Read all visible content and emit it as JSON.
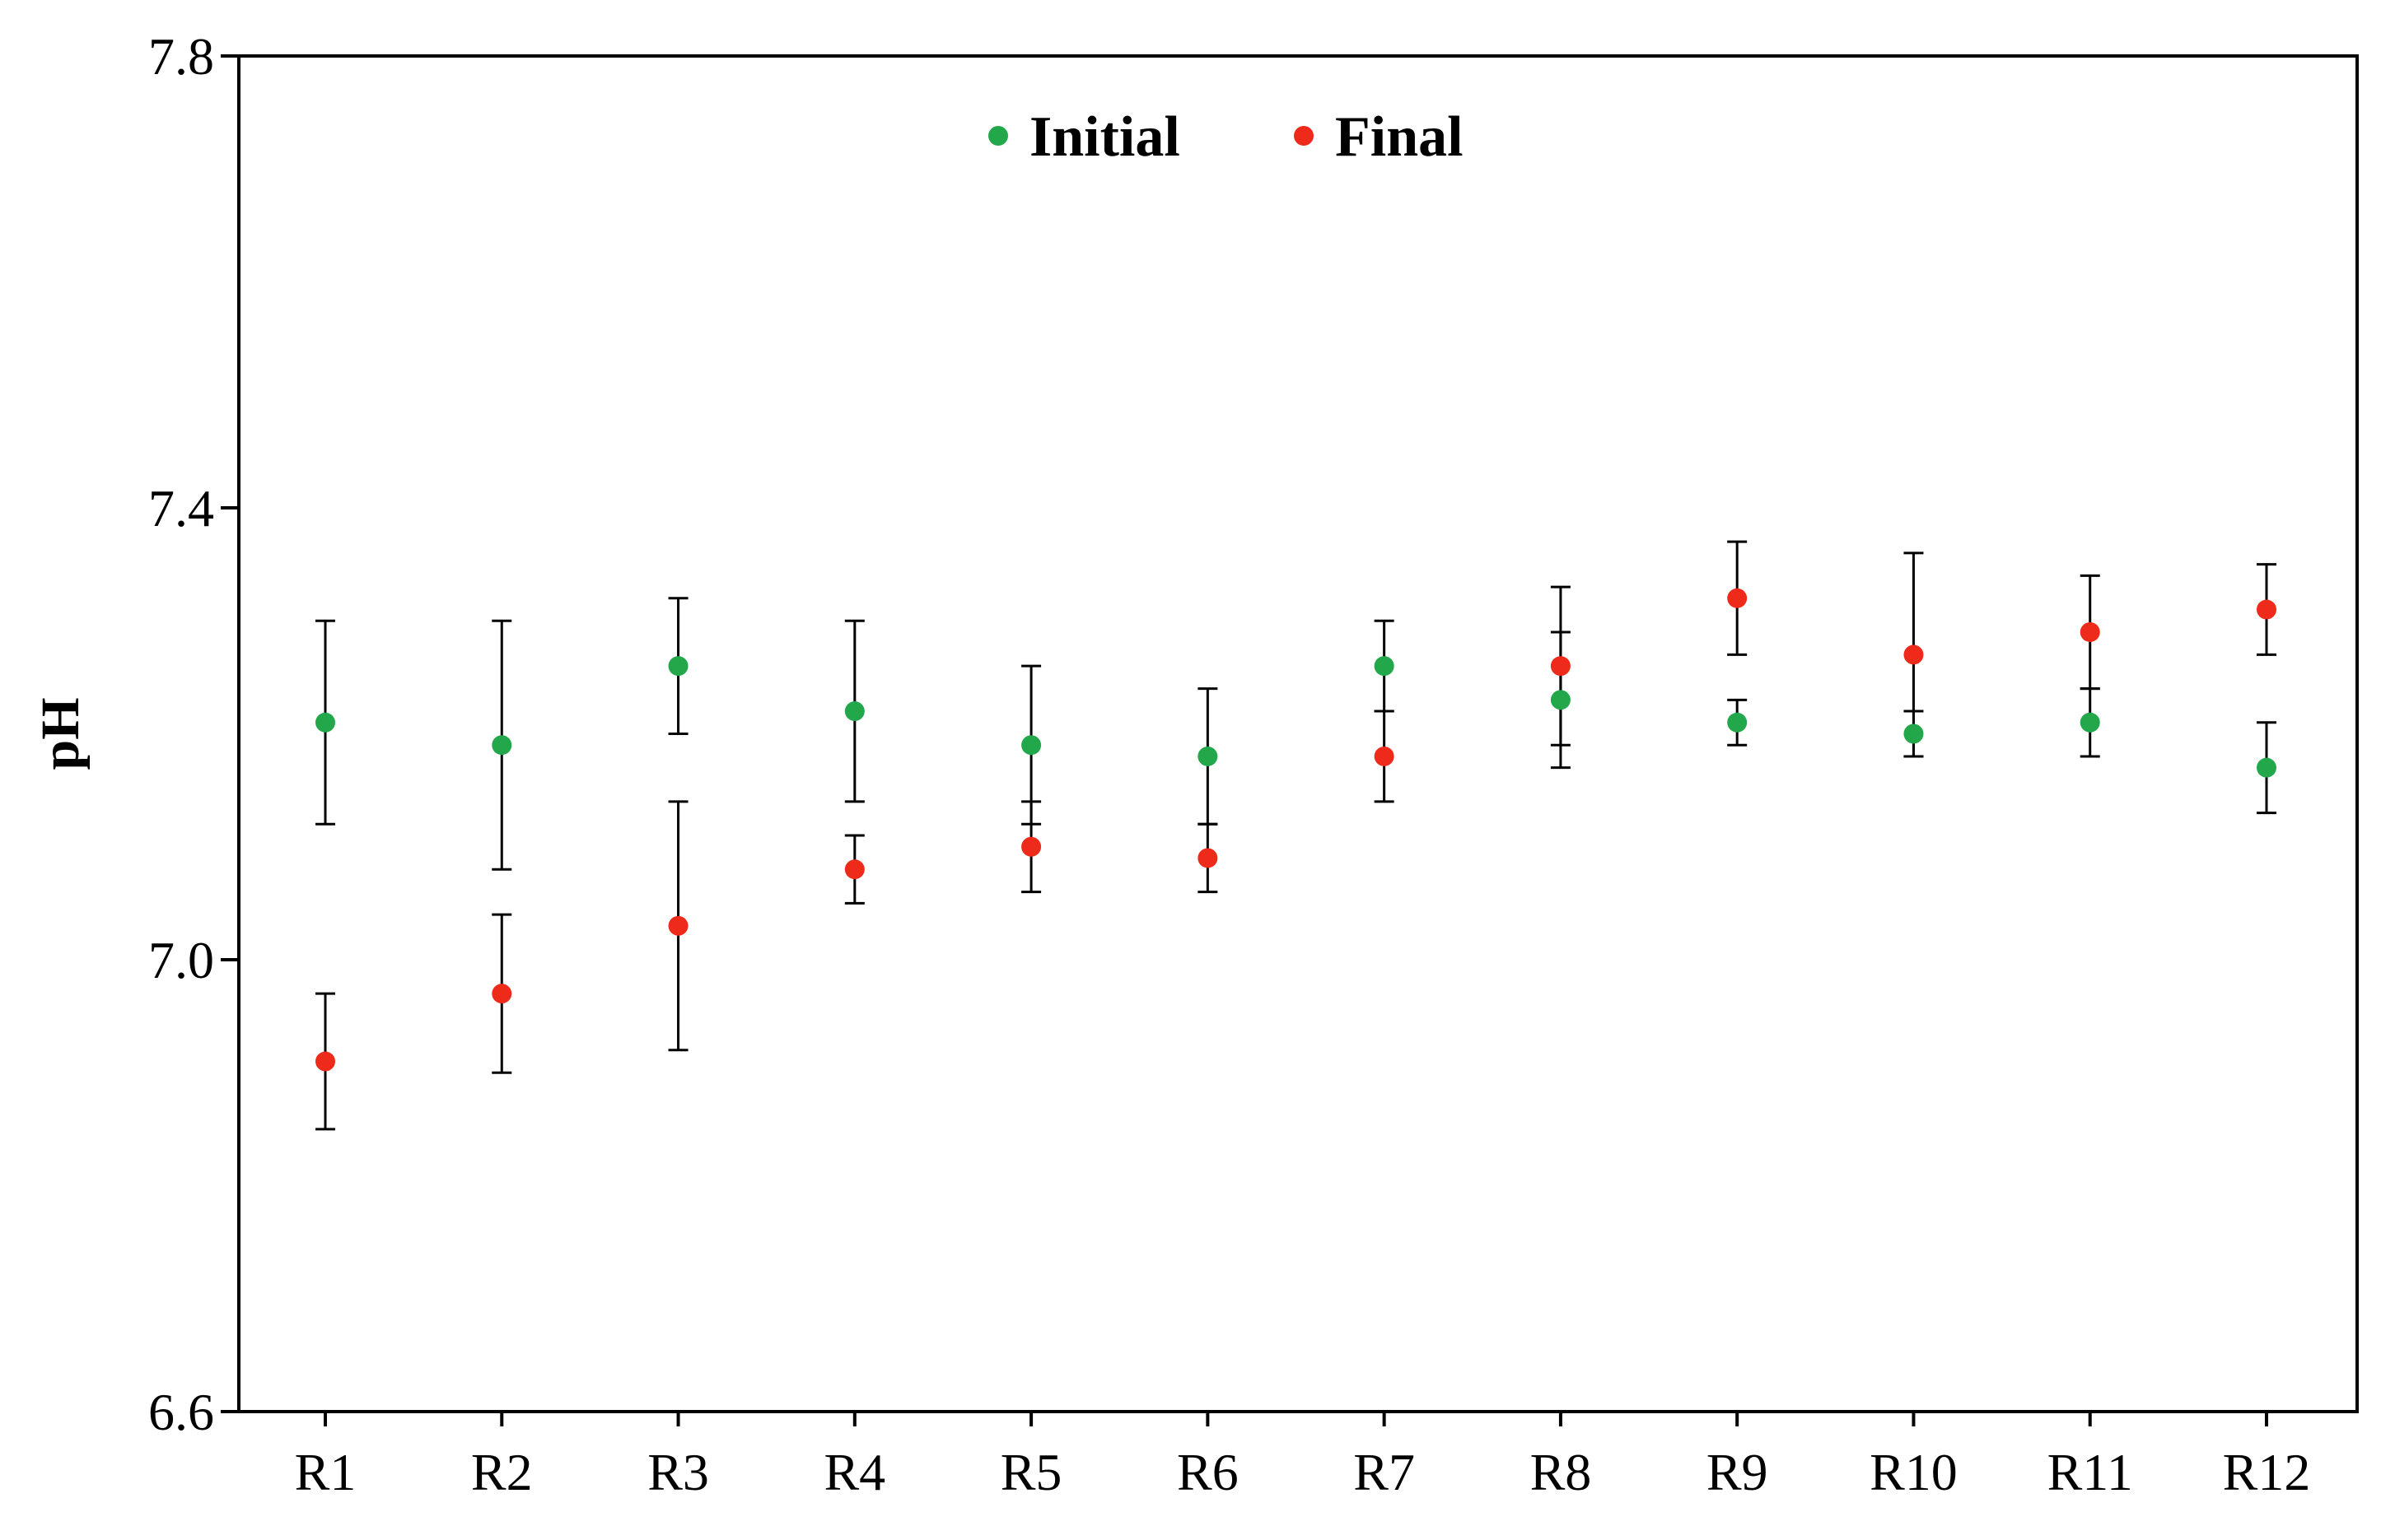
{
  "chart_data": {
    "type": "scatter",
    "title": "",
    "xlabel": "",
    "ylabel": "pH",
    "categories": [
      "R1",
      "R2",
      "R3",
      "R4",
      "R5",
      "R6",
      "R7",
      "R8",
      "R9",
      "R10",
      "R11",
      "R12"
    ],
    "ylim": [
      6.6,
      7.8
    ],
    "yticks": [
      "6.6",
      "7.0",
      "7.4",
      "7.8"
    ],
    "grid": false,
    "legend": "top-center",
    "series": [
      {
        "name": "Initial",
        "color": "#22a84a",
        "values": [
          7.21,
          7.19,
          7.26,
          7.22,
          7.19,
          7.18,
          7.26,
          7.23,
          7.21,
          7.2,
          7.21,
          7.17
        ],
        "error": [
          0.09,
          0.11,
          0.06,
          0.08,
          0.07,
          0.06,
          0.04,
          0.06,
          0.02,
          0.02,
          0.03,
          0.04
        ]
      },
      {
        "name": "Final",
        "color": "#ee2a1b",
        "values": [
          6.91,
          6.97,
          7.03,
          7.08,
          7.1,
          7.09,
          7.18,
          7.26,
          7.32,
          7.27,
          7.29,
          7.31
        ],
        "error": [
          0.06,
          0.07,
          0.11,
          0.03,
          0.04,
          0.03,
          0.04,
          0.07,
          0.05,
          0.09,
          0.05,
          0.04
        ]
      }
    ]
  }
}
